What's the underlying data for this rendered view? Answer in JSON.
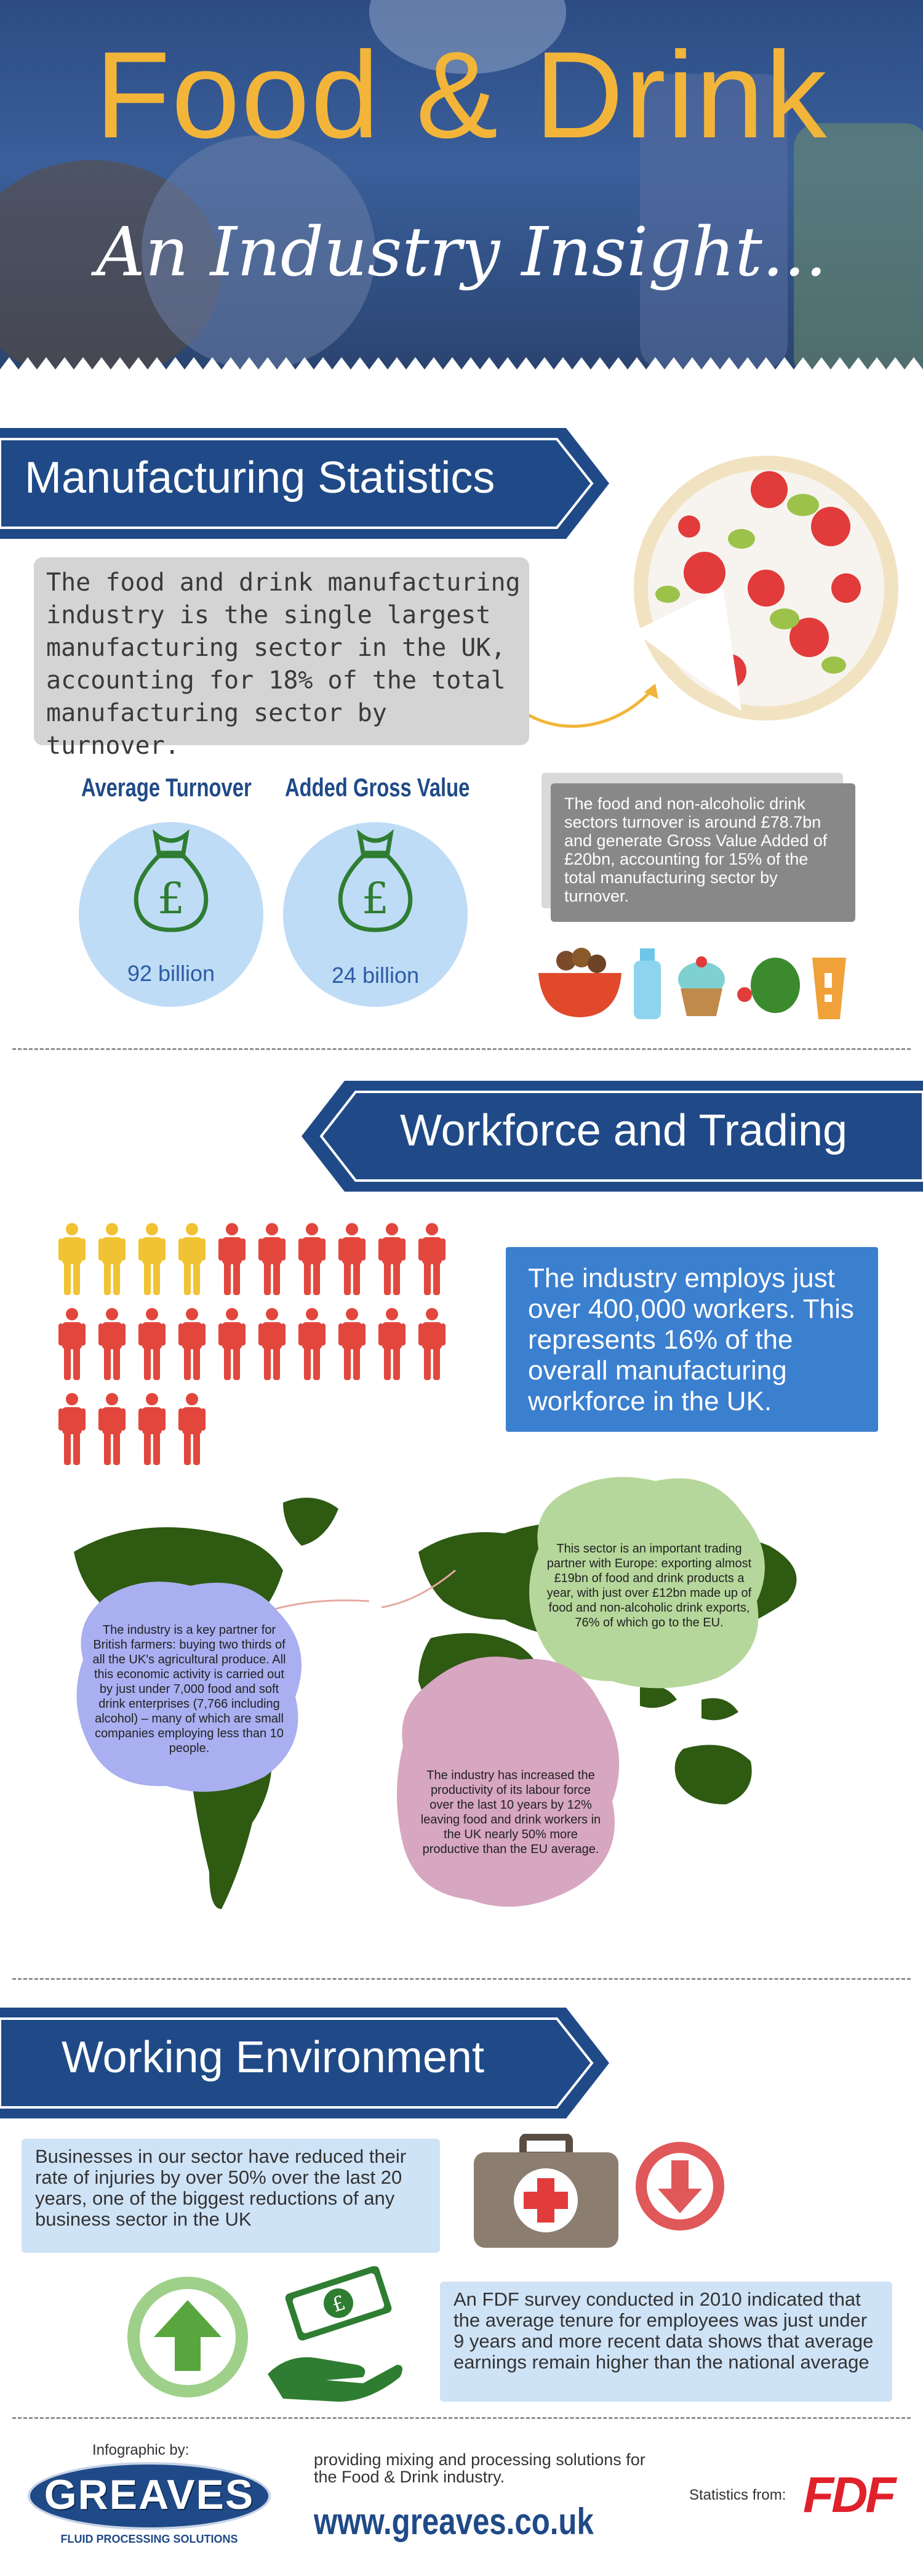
{
  "header": {
    "title": "Food & Drink",
    "subtitle": "An Industry Insight..."
  },
  "manufacturing": {
    "heading": "Manufacturing Statistics",
    "intro": "The food and drink manufacturing industry is the single largest manufacturing sector in the UK, accounting for 18% of the total manufacturing sector by turnover.",
    "stats": [
      {
        "title": "Average Turnover",
        "value": "92 billion"
      },
      {
        "title": "Added Gross Value",
        "value": "24 billion"
      }
    ],
    "detail": "The food and non-alcoholic drink sectors turnover is around £78.7bn and generate Gross Value Added of £20bn, accounting for 15% of the total manufacturing sector by turnover."
  },
  "workforce": {
    "heading": "Workforce and Trading",
    "employees": "The industry employs just over 400,000 workers. This represents 16% of the overall manufacturing workforce in the UK.",
    "bubble_farmers": "The industry is a key partner for British farmers: buying two thirds of all the UK's agricultural produce. All this economic activity is carried out by just under 7,000 food and soft drink enterprises (7,766 including alcohol) – many of which are small companies employing less than 10 people.",
    "bubble_europe": "This sector is an important trading partner with Europe: exporting almost £19bn of food and drink products a year, with just over £12bn made up of food and non-alcoholic drink exports, 76% of which go to the EU.",
    "bubble_productivity": "The industry has increased the productivity of its labour force over the last 10 years by 12% leaving food and drink workers in the UK nearly 50% more productive than the EU average."
  },
  "environment": {
    "heading": "Working Environment",
    "injuries": "Businesses in our sector have reduced their rate of injuries by over 50% over the last 20 years, one of the biggest reductions of any business sector in the UK",
    "survey": "An FDF survey conducted in 2010 indicated that the average tenure for employees was just under 9 years and more recent data shows that average earnings remain higher than the national average"
  },
  "footer": {
    "infographic_by": "Infographic by:",
    "logo_name": "GREAVES",
    "logo_tagline": "FLUID PROCESSING SOLUTIONS",
    "tagline": "providing mixing and processing solutions for the Food & Drink industry.",
    "website": "www.greaves.co.uk",
    "stats_from": "Statistics from:",
    "fdf_logo": "FDF"
  },
  "colors": {
    "navy": "#1f4a87",
    "gold": "#f2b53a",
    "figure_yellow": "#f1c232",
    "figure_red": "#e2463c",
    "map_green": "#2e5a12"
  },
  "icons": [
    "money-bag-icon",
    "pizza-icon",
    "first-aid-kit-icon",
    "arrow-down-icon",
    "arrow-up-icon",
    "money-hand-icon",
    "person-icon"
  ]
}
